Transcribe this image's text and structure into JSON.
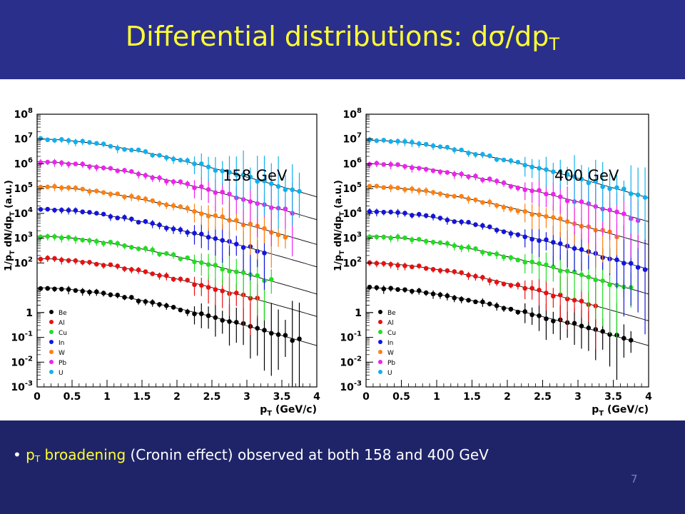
{
  "slide": {
    "title_main": "Differential distributions: dσ/dp",
    "title_sub": "T",
    "bullet": {
      "marker": "•",
      "term_main": "p",
      "term_sub": "T",
      "term_rest": " broadening",
      "text": " (Cronin effect) observed at both 158 and 400 GeV"
    },
    "page_number": "7"
  },
  "colors": {
    "header": "#2b2f8c",
    "footer": "#1f2468",
    "title": "#ffff33",
    "highlight": "#ffff33"
  },
  "chart_data": [
    {
      "type": "scatter",
      "label": "158 GeV",
      "xlabel": "p_T (GeV/c)",
      "ylabel": "1/p_T dN/dp_T (a.u.)",
      "xlim": [
        0,
        4
      ],
      "ylim": [
        0.001,
        100000000
      ],
      "yscale": "log",
      "grid": false,
      "x_ticks": [
        "0",
        "0.5",
        "1",
        "1.5",
        "2",
        "2.5",
        "3",
        "3.5",
        "4"
      ],
      "y_ticks": [
        "10^-3",
        "10^-2",
        "10^-1",
        "1",
        "10",
        "10^2",
        "10^3",
        "10^4",
        "10^5",
        "10^6",
        "10^7",
        "10^8"
      ],
      "legend": {
        "placement": "bottom-left",
        "entries": [
          "Be",
          "Al",
          "Cu",
          "In",
          "W",
          "Pb",
          "U"
        ]
      },
      "series": [
        {
          "name": "Be",
          "color": "#000000",
          "y0": 10,
          "xmax": 3.75
        },
        {
          "name": "Al",
          "color": "#e81010",
          "y0": 150,
          "xmax": 3.15
        },
        {
          "name": "Cu",
          "color": "#22dd22",
          "y0": 1200,
          "xmax": 3.4
        },
        {
          "name": "In",
          "color": "#1414dd",
          "y0": 15000,
          "xmax": 3.3
        },
        {
          "name": "W",
          "color": "#ff8010",
          "y0": 120000,
          "xmax": 3.6
        },
        {
          "name": "Pb",
          "color": "#ee22ee",
          "y0": 1200000,
          "xmax": 3.65
        },
        {
          "name": "U",
          "color": "#10b0ee",
          "y0": 10000000,
          "xmax": 3.75
        }
      ]
    },
    {
      "type": "scatter",
      "label": "400 GeV",
      "xlabel": "p_T (GeV/c)",
      "ylabel": "1/p_T dN/dp_T (a.u.)",
      "xlim": [
        0,
        4
      ],
      "ylim": [
        0.001,
        100000000
      ],
      "yscale": "log",
      "grid": false,
      "x_ticks": [
        "0",
        "0.5",
        "1",
        "1.5",
        "2",
        "2.5",
        "3",
        "3.5",
        "4"
      ],
      "y_ticks": [
        "10^-3",
        "10^-2",
        "10^-1",
        "1",
        "10",
        "10^2",
        "10^3",
        "10^4",
        "10^5",
        "10^6",
        "10^7",
        "10^8"
      ],
      "legend": {
        "placement": "bottom-left",
        "entries": [
          "Be",
          "Al",
          "Cu",
          "In",
          "W",
          "Pb",
          "U"
        ]
      },
      "series": [
        {
          "name": "Be",
          "color": "#000000",
          "y0": 10,
          "xmax": 3.75
        },
        {
          "name": "Al",
          "color": "#e81010",
          "y0": 100,
          "xmax": 3.3
        },
        {
          "name": "Cu",
          "color": "#22dd22",
          "y0": 1200,
          "xmax": 3.75
        },
        {
          "name": "In",
          "color": "#1414dd",
          "y0": 12000,
          "xmax": 3.95
        },
        {
          "name": "W",
          "color": "#ff8010",
          "y0": 120000,
          "xmax": 3.6
        },
        {
          "name": "Pb",
          "color": "#ee22ee",
          "y0": 1000000,
          "xmax": 3.9
        },
        {
          "name": "U",
          "color": "#10b0ee",
          "y0": 9000000,
          "xmax": 3.95
        }
      ]
    }
  ]
}
